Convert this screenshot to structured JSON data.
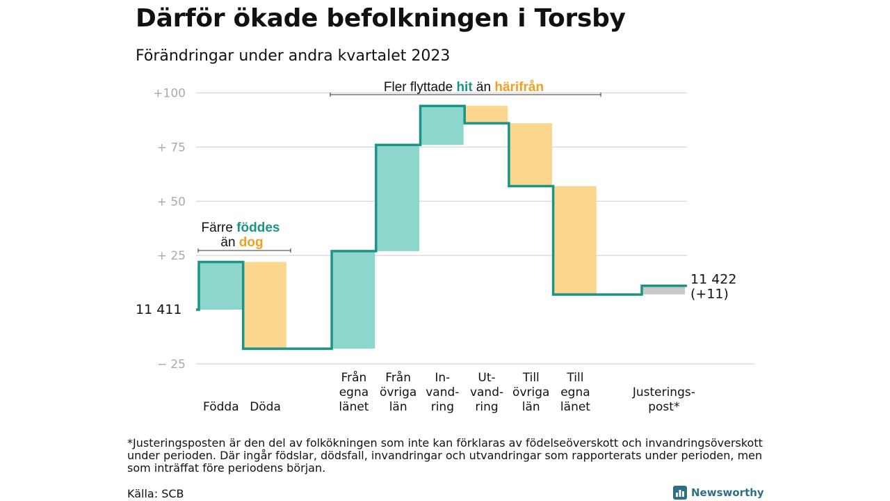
{
  "title": "Därför ökade befolkningen i Torsby",
  "subtitle": "Förändringar under andra kvartalet 2023",
  "footnote": "*Justeringsposten är den del av folkökningen som inte kan förklaras av födelseöverskott och invandringsöverskott under perioden. Där ingår födslar, dödsfall, invandringar och utvandringar som rapporterats under perioden, men som inträffat före periodens början.",
  "source": "Källa: SCB",
  "brand": "Newsworthy",
  "colors": {
    "line": "#1a9484",
    "increase": "#8dd6cc",
    "decrease": "#fbd68f",
    "adjustment": "#c8c8c8",
    "hit_text": "#1a9484",
    "harifran_text": "#f0a020",
    "grid": "#dcdcdc",
    "tick_text": "#aaaaaa"
  },
  "chart_data": {
    "type": "waterfall",
    "start_value": 11411,
    "end_value": 11422,
    "start_label": "11  411",
    "end_label": [
      "11 422",
      "(+11)"
    ],
    "y_ticks": [
      {
        "value": 100,
        "label": "+100"
      },
      {
        "value": 75,
        "label": "+  75"
      },
      {
        "value": 50,
        "label": "+  50"
      },
      {
        "value": 25,
        "label": "+  25"
      },
      {
        "value": -25,
        "label": "−  25"
      }
    ],
    "ylim": [
      -25,
      100
    ],
    "steps": [
      {
        "label": [
          "Födda"
        ],
        "change": 22,
        "kind": "increase"
      },
      {
        "label": [
          "Döda"
        ],
        "change": -40,
        "kind": "decrease"
      },
      {
        "label": [],
        "change": 0,
        "kind": "gap"
      },
      {
        "label": [
          "Från",
          "egna",
          "länet"
        ],
        "change": 45,
        "kind": "increase"
      },
      {
        "label": [
          "Från",
          "övriga",
          "län"
        ],
        "change": 49,
        "kind": "increase"
      },
      {
        "label": [
          "In-",
          "vand-",
          "ring"
        ],
        "change": 18,
        "kind": "increase"
      },
      {
        "label": [
          "Ut-",
          "vand-",
          "ring"
        ],
        "change": -8,
        "kind": "decrease"
      },
      {
        "label": [
          "Till",
          "övriga",
          "län"
        ],
        "change": -29,
        "kind": "decrease"
      },
      {
        "label": [
          "Till",
          "egna",
          "länet"
        ],
        "change": -50,
        "kind": "decrease"
      },
      {
        "label": [],
        "change": 0,
        "kind": "gap"
      },
      {
        "label": [
          "Justerings-",
          "post*"
        ],
        "change": 4,
        "kind": "adjustment"
      }
    ],
    "annotations": [
      {
        "parts": [
          "Färre ",
          "föddes"
        ],
        "line2_parts": [
          "än ",
          "dog"
        ]
      },
      {
        "parts": [
          "Fler flyttade ",
          "hit",
          " än ",
          "härifrån"
        ]
      }
    ]
  }
}
